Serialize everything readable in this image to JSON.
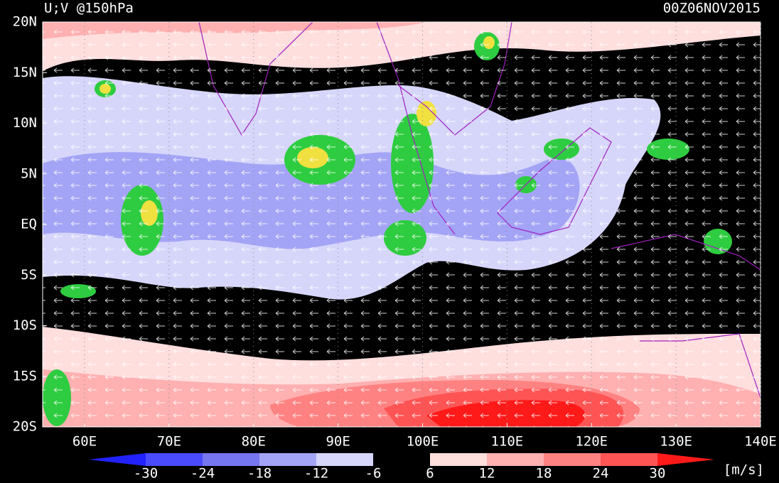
{
  "header": {
    "title": "U;V @150hPa",
    "time": "00Z06NOV2015"
  },
  "map": {
    "lat_labels": [
      "20N",
      "15N",
      "10N",
      "5N",
      "EQ",
      "5S",
      "10S",
      "15S",
      "20S"
    ],
    "lon_labels": [
      "60E",
      "70E",
      "80E",
      "90E",
      "100E",
      "110E",
      "120E",
      "130E",
      "140E"
    ]
  },
  "colorbar": {
    "levels": [
      -30,
      -24,
      -18,
      -12,
      -6,
      6,
      12,
      18,
      24,
      30
    ],
    "colors": [
      "#2222ff",
      "#4a4aff",
      "#7676f0",
      "#a4a4f6",
      "#d6d6fb",
      "#000000",
      "#ffdede",
      "#ffb0b0",
      "#ff8282",
      "#ff5454",
      "#ff1a1a"
    ],
    "unit": "[m/s]"
  }
}
